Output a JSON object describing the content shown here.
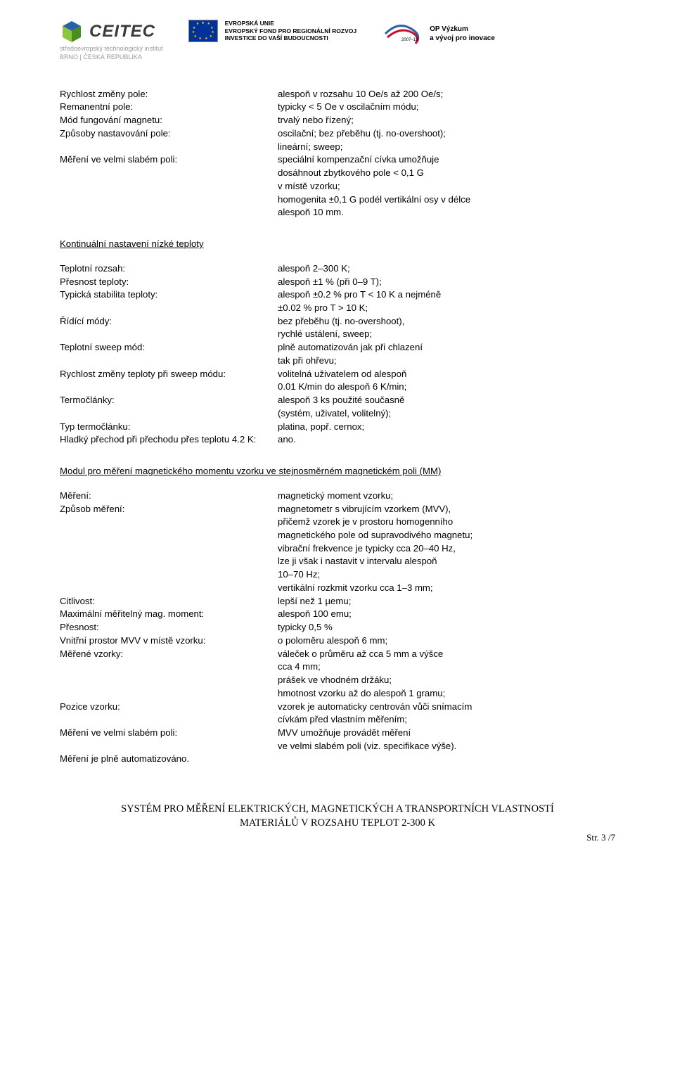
{
  "header": {
    "ceitec_name": "CEITEC",
    "ceitec_sub1": "středoevropský technologický institut",
    "ceitec_sub2": "BRNO | ČESKÁ REPUBLIKA",
    "ceitec_blue": "#2a62a8",
    "ceitec_green": "#8cc63f",
    "eu_line1": "EVROPSKÁ UNIE",
    "eu_line2": "EVROPSKÝ FOND PRO REGIONÁLNÍ ROZVOJ",
    "eu_line3": "INVESTICE DO VAŠÍ BUDOUCNOSTI",
    "op_period": "2007–13",
    "op_line1": "OP Výzkum",
    "op_line2": "a vývoj pro inovace",
    "swirl_blue": "#2a62a8",
    "swirl_red": "#c8102e"
  },
  "section1": {
    "rows": [
      {
        "l": "Rychlost změny pole:",
        "v": "alespoň v rozsahu 10 Oe/s až 200 Oe/s;"
      },
      {
        "l": "Remanentní pole:",
        "v": "typicky < 5 Oe v oscilačním módu;"
      },
      {
        "l": "Mód fungování magnetu:",
        "v": "trvalý nebo řízený;"
      },
      {
        "l": "Způsoby nastavování pole:",
        "v": "oscilační; bez přeběhu (tj. no-overshoot);\nlineární; sweep;"
      },
      {
        "l": "Měření ve velmi slabém poli:",
        "v": "speciální kompenzační cívka umožňuje\ndosáhnout zbytkového pole < 0,1 G\nv místě vzorku;\nhomogenita ±0,1 G podél vertikální osy v délce\nalespoň 10 mm."
      }
    ]
  },
  "section2": {
    "title": "Kontinuální nastavení nízké teploty",
    "rows": [
      {
        "l": "Teplotní rozsah:",
        "v": "alespoň 2–300 K;"
      },
      {
        "l": "Přesnost teploty:",
        "v": "alespoň ±1 % (při 0–9 T);"
      },
      {
        "l": "Typická stabilita teploty:",
        "v": "alespoň ±0.2 % pro T < 10 K a nejméně\n±0.02 % pro T > 10 K;"
      },
      {
        "l": "Řídící módy:",
        "v": "bez přeběhu (tj. no-overshoot),\nrychlé ustálení, sweep;"
      },
      {
        "l": "Teplotní sweep mód:",
        "v": "plně automatizován jak při chlazení\ntak při ohřevu;"
      },
      {
        "l": "Rychlost změny teploty při sweep módu:",
        "v": "volitelná uživatelem od alespoň\n0.01 K/min do alespoň 6 K/min;"
      },
      {
        "l": "Termočlánky:",
        "v": "alespoň 3 ks použité současně\n(systém, uživatel, volitelný);"
      },
      {
        "l": "Typ termočlánku:",
        "v": "platina, popř. cernox;"
      },
      {
        "l": "Hladký přechod při přechodu přes teplotu 4.2 K:",
        "v": "ano."
      }
    ]
  },
  "section3": {
    "title": "Modul pro měření magnetického momentu vzorku ve stejnosměrném magnetickém poli (MM)",
    "rows": [
      {
        "l": "Měření:",
        "v": "magnetický moment vzorku;"
      },
      {
        "l": "Způsob měření:",
        "v": "magnetometr s vibrujícím vzorkem (MVV),\npřičemž vzorek je v prostoru homogenního\nmagnetického pole od supravodivého magnetu;\nvibrační frekvence je typicky cca 20–40 Hz,\nlze ji však i nastavit v intervalu alespoň\n10–70 Hz;\nvertikální rozkmit vzorku cca 1–3 mm;"
      },
      {
        "l": "Citlivost:",
        "v": "lepší než 1 µemu;"
      },
      {
        "l": "Maximální měřitelný mag. moment:",
        "v": "alespoň 100 emu;"
      },
      {
        "l": "Přesnost:",
        "v": "typicky 0,5 %"
      },
      {
        "l": "Vnitřní prostor MVV v místě vzorku:",
        "v": "o poloměru alespoň 6 mm;"
      },
      {
        "l": "Měřené vzorky:",
        "v": "váleček o průměru až cca 5 mm a výšce\ncca 4 mm;\nprášek ve vhodném držáku;\nhmotnost vzorku až do alespoň 1 gramu;"
      },
      {
        "l": "Pozice vzorku:",
        "v": "vzorek je automaticky centrován vůči snímacím\ncívkám před vlastním měřením;"
      },
      {
        "l": "Měření ve velmi slabém poli:",
        "v": "MVV umožňuje provádět měření\nve velmi slabém poli (viz. specifikace výše)."
      },
      {
        "l": "Měření je plně automatizováno.",
        "v": ""
      }
    ]
  },
  "footer": {
    "line1": "SYSTÉM PRO MĚŘENÍ ELEKTRICKÝCH, MAGNETICKÝCH A TRANSPORTNÍCH VLASTNOSTÍ",
    "line2": "MATERIÁLŮ V ROZSAHU TEPLOT 2-300 K",
    "page": "Str. 3 /7"
  }
}
